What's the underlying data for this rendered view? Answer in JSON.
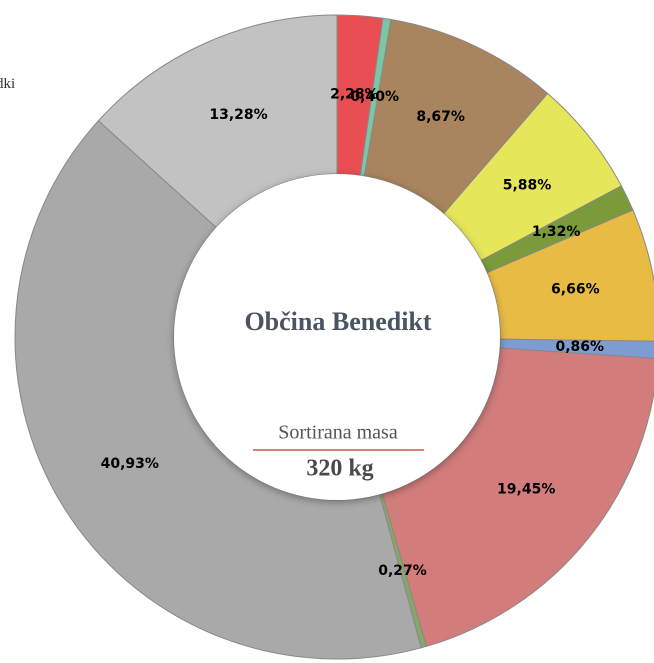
{
  "legend_fragment": "dki",
  "chart_data": {
    "type": "pie",
    "donut": true,
    "center_title": "Občina Benedikt",
    "center_subtitle": "Sortirana masa",
    "center_value": "320 kg",
    "values": [
      2.28,
      0.4,
      8.67,
      5.88,
      1.32,
      6.66,
      0.86,
      19.45,
      0.27,
      40.93,
      13.28
    ],
    "value_labels": [
      "2,28%",
      "0,40%",
      "8,67%",
      "5,88%",
      "1,32%",
      "6,66%",
      "0,86%",
      "19,45%",
      "0,27%",
      "40,93%",
      "13,28%"
    ],
    "colors": [
      "#e84e52",
      "#7cc6a6",
      "#a8845f",
      "#e6e65a",
      "#7b9a3b",
      "#e8bb44",
      "#7e9cd2",
      "#d27c7c",
      "#86a866",
      "#a9a9a9",
      "#c2c2c2"
    ]
  }
}
